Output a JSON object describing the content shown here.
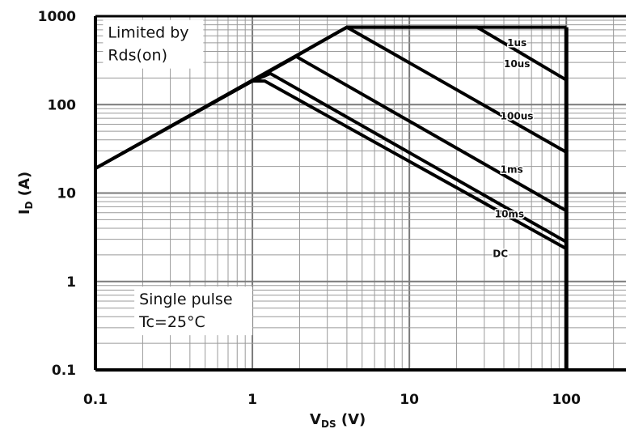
{
  "chart_data": {
    "type": "line",
    "title": "",
    "xlabel": {
      "main": "V",
      "sub": "DS",
      "unit": " (V)"
    },
    "ylabel": {
      "main": "I",
      "sub": "D",
      "unit": " (A)"
    },
    "xscale": "log",
    "yscale": "log",
    "xlim": [
      0.1,
      240
    ],
    "ylim": [
      0.1,
      1000
    ],
    "grid": true,
    "x_ticks": [
      "0.1",
      "1",
      "10",
      "100"
    ],
    "x_tick_values": [
      0.1,
      1,
      10,
      100
    ],
    "y_ticks": [
      "0.1",
      "1",
      "10",
      "100",
      "1000"
    ],
    "y_tick_values": [
      0.1,
      1,
      10,
      100,
      1000
    ],
    "vertical_limit_x": 100,
    "series": [
      {
        "name": "1us",
        "points": [
          [
            0.1,
            19
          ],
          [
            1,
            185
          ],
          [
            4,
            750
          ],
          [
            100,
            750
          ]
        ]
      },
      {
        "name": "10us",
        "points": [
          [
            4,
            750
          ],
          [
            27,
            750
          ],
          [
            100,
            190
          ]
        ]
      },
      {
        "name": "100us",
        "points": [
          [
            0.1,
            19
          ],
          [
            4,
            750
          ],
          [
            100,
            29
          ]
        ]
      },
      {
        "name": "1ms",
        "points": [
          [
            0.1,
            19
          ],
          [
            1.9,
            350
          ],
          [
            100,
            6.3
          ]
        ]
      },
      {
        "name": "10ms",
        "points": [
          [
            1,
            185
          ],
          [
            1.3,
            225
          ],
          [
            100,
            2.8
          ]
        ]
      },
      {
        "name": "DC",
        "points": [
          [
            1,
            185
          ],
          [
            1.2,
            185
          ],
          [
            100,
            2.35
          ]
        ]
      }
    ],
    "series_labels": [
      {
        "text": "1us",
        "x": 42,
        "y": 460
      },
      {
        "text": "10us",
        "x": 40,
        "y": 265
      },
      {
        "text": "100us",
        "x": 38,
        "y": 68
      },
      {
        "text": "1ms",
        "x": 38,
        "y": 17
      },
      {
        "text": "10ms",
        "x": 35,
        "y": 5.3
      },
      {
        "text": "DC",
        "x": 34,
        "y": 1.9
      }
    ],
    "annotations": [
      {
        "lines": [
          "Limited by",
          "Rds(on)"
        ],
        "x": 0.12,
        "y": 570
      },
      {
        "lines": [
          "Single pulse",
          "Tc=25°C"
        ],
        "x": 0.19,
        "y": 0.55
      }
    ]
  }
}
